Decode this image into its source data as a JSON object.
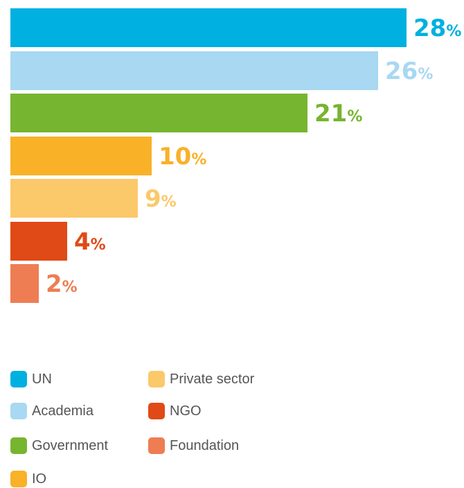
{
  "chart_data": {
    "type": "bar",
    "orientation": "horizontal",
    "categories": [
      "UN",
      "Academia",
      "Government",
      "IO",
      "Private sector",
      "NGO",
      "Foundation"
    ],
    "values": [
      28,
      26,
      21,
      10,
      9,
      4,
      2
    ],
    "value_suffix": "%",
    "colors": [
      "#00b0e0",
      "#a8d8f2",
      "#76b52f",
      "#f9b128",
      "#fbc86a",
      "#e04a16",
      "#ee7d54"
    ],
    "title": "",
    "xlabel": "",
    "ylabel": "",
    "xlim": [
      0,
      28
    ],
    "grid": false,
    "legend_position": "bottom"
  },
  "legend": {
    "items": [
      {
        "label": "UN",
        "color": "#00b0e0"
      },
      {
        "label": "Academia",
        "color": "#a8d8f2"
      },
      {
        "label": "Government",
        "color": "#76b52f"
      },
      {
        "label": "IO",
        "color": "#f9b128"
      },
      {
        "label": "Private sector",
        "color": "#fbc86a"
      },
      {
        "label": "NGO",
        "color": "#e04a16"
      },
      {
        "label": "Foundation",
        "color": "#ee7d54"
      }
    ]
  }
}
